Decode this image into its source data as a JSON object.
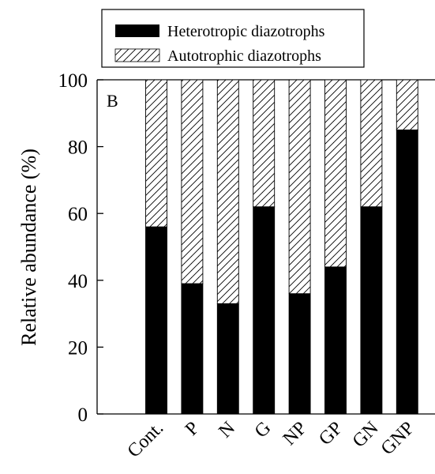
{
  "chart_data": {
    "type": "bar",
    "stacked": true,
    "panel_label": "B",
    "categories": [
      "Cont.",
      "P",
      "N",
      "G",
      "NP",
      "GP",
      "GN",
      "GNP"
    ],
    "series": [
      {
        "name": "Heterotropic diazotrophs",
        "values": [
          56,
          39,
          33,
          62,
          36,
          44,
          62,
          85
        ],
        "fill": "#000000"
      },
      {
        "name": "Autotrophic diazotrophs",
        "values": [
          44,
          61,
          67,
          38,
          64,
          56,
          38,
          15
        ],
        "fill": "hatch"
      }
    ],
    "ylabel": "Relative abundance (%)",
    "xlabel": "",
    "ylim": [
      0,
      100
    ],
    "yticks": [
      0,
      20,
      40,
      60,
      80,
      100
    ],
    "grid": false,
    "legend_position": "top"
  }
}
